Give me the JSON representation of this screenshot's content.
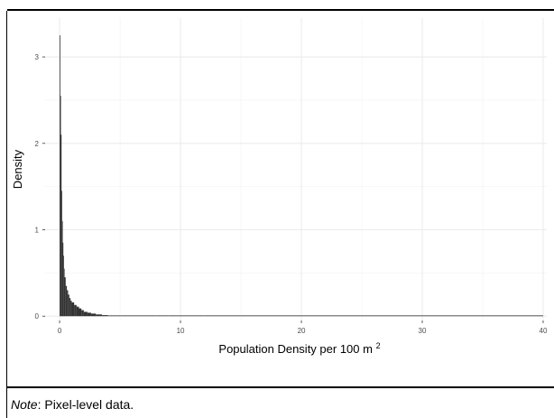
{
  "chart_data": {
    "type": "histogram",
    "xlabel": "Population Density per 100 m",
    "xlabel_superscript": "2",
    "ylabel": "Density",
    "xlim": [
      -1.2,
      40.3
    ],
    "ylim": [
      -0.05,
      3.45
    ],
    "x_ticks": [
      0,
      10,
      20,
      30,
      40
    ],
    "y_ticks": [
      0,
      1,
      2,
      3
    ],
    "x_tick_labels": [
      "0",
      "10",
      "20",
      "30",
      "40"
    ],
    "y_tick_labels": [
      "0",
      "1",
      "2",
      "3"
    ],
    "grid": true,
    "legend": "none",
    "bar_color": "#333333",
    "bins": [
      {
        "x": 0.0,
        "y": 3.25
      },
      {
        "x": 0.05,
        "y": 2.55
      },
      {
        "x": 0.1,
        "y": 2.1
      },
      {
        "x": 0.15,
        "y": 1.45
      },
      {
        "x": 0.2,
        "y": 1.1
      },
      {
        "x": 0.25,
        "y": 0.85
      },
      {
        "x": 0.3,
        "y": 0.7
      },
      {
        "x": 0.35,
        "y": 0.55
      },
      {
        "x": 0.4,
        "y": 0.45
      },
      {
        "x": 0.5,
        "y": 0.35
      },
      {
        "x": 0.6,
        "y": 0.3
      },
      {
        "x": 0.7,
        "y": 0.25
      },
      {
        "x": 0.8,
        "y": 0.21
      },
      {
        "x": 0.9,
        "y": 0.18
      },
      {
        "x": 1.0,
        "y": 0.16
      },
      {
        "x": 1.2,
        "y": 0.13
      },
      {
        "x": 1.4,
        "y": 0.11
      },
      {
        "x": 1.6,
        "y": 0.09
      },
      {
        "x": 1.8,
        "y": 0.07
      },
      {
        "x": 2.0,
        "y": 0.05
      },
      {
        "x": 2.3,
        "y": 0.04
      },
      {
        "x": 2.6,
        "y": 0.03
      },
      {
        "x": 3.0,
        "y": 0.02
      },
      {
        "x": 3.5,
        "y": 0.012
      },
      {
        "x": 4.0,
        "y": 0.008
      },
      {
        "x": 5.0,
        "y": 0.005
      },
      {
        "x": 6.0,
        "y": 0.004
      },
      {
        "x": 7.0,
        "y": 0.003
      },
      {
        "x": 8.0,
        "y": 0.004
      },
      {
        "x": 9.0,
        "y": 0.006
      },
      {
        "x": 10.0,
        "y": 0.006
      },
      {
        "x": 12.0,
        "y": 0.002
      },
      {
        "x": 15.0,
        "y": 0.001
      },
      {
        "x": 20.0,
        "y": 0.001
      },
      {
        "x": 25.0,
        "y": 0.001
      },
      {
        "x": 30.0,
        "y": 0.001
      },
      {
        "x": 35.0,
        "y": 0.001
      },
      {
        "x": 39.0,
        "y": 0.001
      }
    ]
  },
  "note": {
    "label": "Note",
    "text": ": Pixel-level data."
  }
}
